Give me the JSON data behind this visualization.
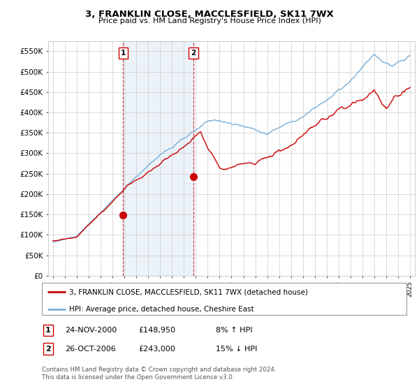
{
  "title": "3, FRANKLIN CLOSE, MACCLESFIELD, SK11 7WX",
  "subtitle": "Price paid vs. HM Land Registry's House Price Index (HPI)",
  "ylabel_ticks": [
    "£0",
    "£50K",
    "£100K",
    "£150K",
    "£200K",
    "£250K",
    "£300K",
    "£350K",
    "£400K",
    "£450K",
    "£500K",
    "£550K"
  ],
  "ylabel_vals": [
    0,
    50000,
    100000,
    150000,
    200000,
    250000,
    300000,
    350000,
    400000,
    450000,
    500000,
    550000
  ],
  "xlim": [
    1994.6,
    2025.4
  ],
  "ylim": [
    0,
    575000
  ],
  "purchase1": {
    "year": 2000.9,
    "price": 148950,
    "label": "1",
    "date": "24-NOV-2000",
    "hpi_pct": "8% ↑ HPI"
  },
  "purchase2": {
    "year": 2006.8,
    "price": 243000,
    "label": "2",
    "date": "26-OCT-2006",
    "hpi_pct": "15% ↓ HPI"
  },
  "legend_red": "3, FRANKLIN CLOSE, MACCLESFIELD, SK11 7WX (detached house)",
  "legend_blue": "HPI: Average price, detached house, Cheshire East",
  "footnote": "Contains HM Land Registry data © Crown copyright and database right 2024.\nThis data is licensed under the Open Government Licence v3.0.",
  "background_color": "#ffffff",
  "grid_color": "#cccccc",
  "red_color": "#cc0000",
  "blue_color": "#7aaed6",
  "shade_color": "#ddeeff"
}
